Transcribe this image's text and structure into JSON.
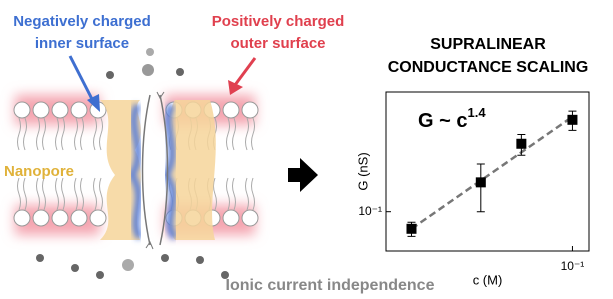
{
  "labels": {
    "negative": [
      "Negatively charged",
      "inner surface"
    ],
    "positive": [
      "Positively charged",
      "outer surface"
    ],
    "nanopore": "Nanopore",
    "bottom": "Ionic current independence"
  },
  "chart_data": {
    "type": "scatter",
    "title": [
      "SUPRALINEAR",
      "CONDUCTANCE SCALING"
    ],
    "annotation": {
      "base": "G ~ c",
      "exponent": "1.4"
    },
    "x_label": "c (M)",
    "y_label": "G (nS)",
    "x": [
      0.02,
      0.04,
      0.06,
      0.1
    ],
    "values": [
      0.071,
      0.18,
      0.39,
      0.63
    ],
    "errors": [
      0.01,
      0.08,
      0.08,
      0.12
    ],
    "fit": {
      "x": [
        0.02,
        0.1
      ],
      "values": [
        0.071,
        0.67
      ]
    },
    "color": "#000000",
    "xlog": true,
    "ylog": true,
    "xlim": [
      0.0155,
      0.118
    ],
    "ylim": [
      0.0455,
      1.1
    ],
    "xticks": [
      {
        "value": 0.1,
        "label": "10⁻¹"
      }
    ],
    "yticks": [
      {
        "value": 0.1,
        "label": "10⁻¹"
      }
    ]
  }
}
